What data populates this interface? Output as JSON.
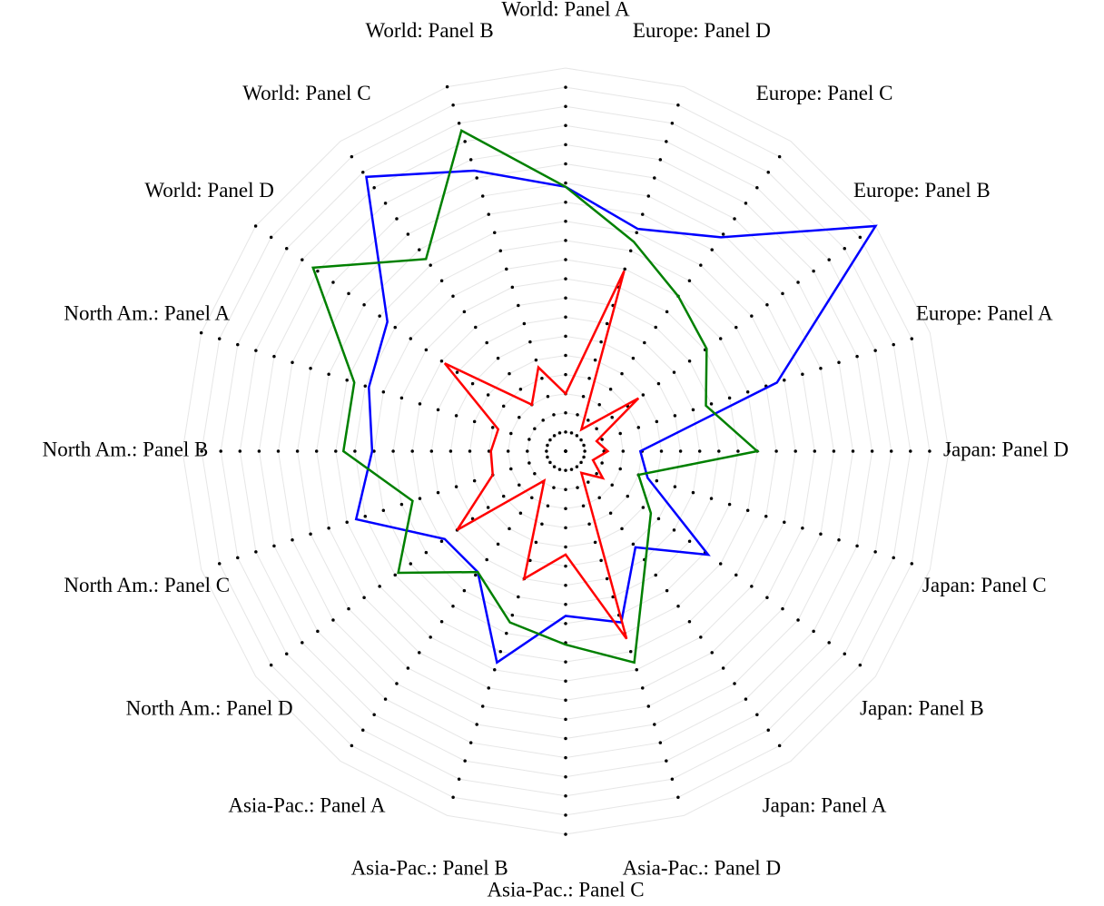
{
  "chart_data": {
    "type": "radar",
    "categories": [
      "World: Panel A",
      "Europe: Panel D",
      "Europe: Panel C",
      "Europe: Panel B",
      "Europe: Panel A",
      "Japan: Panel D",
      "Japan: Panel C",
      "Japan: Panel B",
      "Japan: Panel A",
      "Asia-Pac.: Panel D",
      "Asia-Pac.: Panel C",
      "Asia-Pac.: Panel B",
      "Asia-Pac.: Panel A",
      "North Am.: Panel D",
      "North Am.: Panel C",
      "North Am.: Panel B",
      "North Am.: Panel A",
      "World: Panel D",
      "World: Panel C",
      "World: Panel B"
    ],
    "series": [
      {
        "color": "#0000ff",
        "values": [
          13.8,
          12.2,
          13.8,
          20,
          11.6,
          3.9,
          4.5,
          9.2,
          6.2,
          9.4,
          8.6,
          11.6,
          7.8,
          7.8,
          11.5,
          10.1,
          10.8,
          11.5,
          17.7,
          15.4
        ]
      },
      {
        "color": "#008000",
        "values": [
          13.8,
          11.5,
          10,
          9.1,
          7.7,
          10,
          4,
          5.5,
          7.1,
          11.6,
          10.1,
          9.4,
          7.8,
          10.8,
          8.4,
          11.6,
          11.6,
          16.3,
          12.4,
          17.6
        ]
      },
      {
        "color": "#ff0000",
        "values": [
          3.0,
          9.9,
          1.4,
          4.7,
          1.7,
          2.2,
          1.5,
          2.4,
          1.4,
          10.3,
          5.4,
          7.0,
          1.9,
          7.0,
          4.0,
          3.9,
          3.7,
          7.8,
          3.0,
          4.6
        ]
      }
    ],
    "rlim": [
      0,
      20
    ],
    "rticks": [
      0,
      1,
      2,
      3,
      4,
      5,
      6,
      7,
      8,
      9,
      10,
      11,
      12,
      13,
      14,
      15,
      16,
      17,
      18,
      19,
      20
    ],
    "grid": true
  }
}
